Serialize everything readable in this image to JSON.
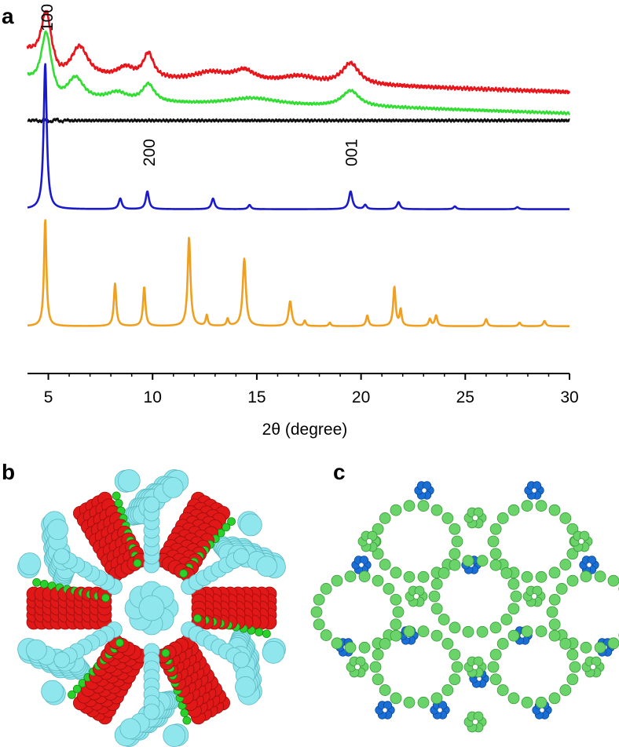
{
  "panels": {
    "a": "a",
    "b": "b",
    "c": "c"
  },
  "chart_data": {
    "type": "line",
    "title": "",
    "xlabel": "2θ (degree)",
    "ylabel": "",
    "xlim": [
      4,
      30
    ],
    "x_ticks": [
      5,
      10,
      15,
      20,
      25,
      30
    ],
    "grid": false,
    "legend": "none",
    "y_scale": "arbitrary intensity, traces stacked with vertical offsets",
    "peak_labels": [
      {
        "text": "100",
        "x": 4.9
      },
      {
        "text": "200",
        "x": 9.8
      },
      {
        "text": "001",
        "x": 19.5
      }
    ],
    "series": [
      {
        "color": "#e8151b",
        "baseline": 0.78,
        "peaks": [
          [
            4.9,
            1.0,
            0.3
          ],
          [
            6.5,
            0.09,
            0.5
          ],
          [
            8.7,
            0.03,
            0.5
          ],
          [
            9.8,
            0.07,
            0.3
          ],
          [
            12.8,
            0.025,
            1.0
          ],
          [
            14.4,
            0.03,
            0.6
          ],
          [
            17.0,
            0.02,
            1.0
          ],
          [
            19.5,
            0.06,
            0.5
          ]
        ],
        "points": [
          [
            4.0,
            0.87
          ],
          [
            4.9,
            1.0
          ],
          [
            5.5,
            0.87
          ],
          [
            6.5,
            0.86
          ],
          [
            7.5,
            0.83
          ],
          [
            9.0,
            0.82
          ],
          [
            9.8,
            0.845
          ],
          [
            11.0,
            0.82
          ],
          [
            14.4,
            0.815
          ],
          [
            17.0,
            0.81
          ],
          [
            19.5,
            0.82
          ],
          [
            22.0,
            0.795
          ],
          [
            26.0,
            0.78
          ],
          [
            30.0,
            0.77
          ]
        ]
      },
      {
        "color": "#33dd33",
        "baseline": 0.72,
        "peaks": [
          [
            4.9,
            0.94,
            0.3
          ],
          [
            6.3,
            0.07,
            0.5
          ],
          [
            8.3,
            0.025,
            0.6
          ],
          [
            9.8,
            0.05,
            0.35
          ],
          [
            14.8,
            0.02,
            1.5
          ],
          [
            19.5,
            0.045,
            0.5
          ]
        ],
        "points": [
          [
            4.0,
            0.81
          ],
          [
            4.9,
            0.94
          ],
          [
            5.5,
            0.83
          ],
          [
            6.3,
            0.8
          ],
          [
            7.5,
            0.77
          ],
          [
            9.0,
            0.765
          ],
          [
            9.8,
            0.78
          ],
          [
            11.0,
            0.755
          ],
          [
            15.0,
            0.755
          ],
          [
            19.5,
            0.765
          ],
          [
            22.0,
            0.745
          ],
          [
            26.0,
            0.735
          ],
          [
            30.0,
            0.735
          ]
        ]
      },
      {
        "color": "#111111",
        "baseline": 0.7,
        "peaks": [],
        "points": [
          [
            4.0,
            0.7
          ],
          [
            30.0,
            0.7
          ]
        ]
      },
      {
        "color": "#1a1acc",
        "baseline": 0.45,
        "peaks": [
          [
            4.85,
            0.41,
            0.09
          ],
          [
            8.45,
            0.03,
            0.09
          ],
          [
            9.75,
            0.05,
            0.09
          ],
          [
            12.9,
            0.03,
            0.09
          ],
          [
            14.65,
            0.012,
            0.08
          ],
          [
            19.5,
            0.05,
            0.1
          ],
          [
            20.2,
            0.012,
            0.08
          ],
          [
            21.8,
            0.02,
            0.09
          ],
          [
            24.5,
            0.008,
            0.08
          ],
          [
            27.5,
            0.006,
            0.08
          ]
        ],
        "points": [
          [
            4.0,
            0.45
          ],
          [
            4.85,
            0.86
          ],
          [
            8.45,
            0.48
          ],
          [
            9.75,
            0.5
          ],
          [
            12.9,
            0.48
          ],
          [
            19.5,
            0.5
          ],
          [
            21.8,
            0.47
          ],
          [
            30.0,
            0.45
          ]
        ]
      },
      {
        "color": "#f0a020",
        "baseline": 0.12,
        "peaks": [
          [
            4.85,
            0.3,
            0.07
          ],
          [
            8.2,
            0.12,
            0.07
          ],
          [
            9.6,
            0.11,
            0.07
          ],
          [
            11.75,
            0.25,
            0.08
          ],
          [
            12.6,
            0.03,
            0.06
          ],
          [
            13.6,
            0.02,
            0.06
          ],
          [
            14.4,
            0.19,
            0.09
          ],
          [
            16.6,
            0.07,
            0.09
          ],
          [
            17.3,
            0.015,
            0.06
          ],
          [
            18.5,
            0.01,
            0.06
          ],
          [
            20.3,
            0.03,
            0.07
          ],
          [
            21.6,
            0.11,
            0.07
          ],
          [
            21.9,
            0.045,
            0.06
          ],
          [
            23.3,
            0.02,
            0.07
          ],
          [
            23.6,
            0.03,
            0.07
          ],
          [
            26.0,
            0.02,
            0.07
          ],
          [
            27.6,
            0.01,
            0.07
          ],
          [
            28.8,
            0.015,
            0.07
          ]
        ],
        "points": [
          [
            4.0,
            0.12
          ],
          [
            4.85,
            0.42
          ],
          [
            8.2,
            0.24
          ],
          [
            9.6,
            0.23
          ],
          [
            11.75,
            0.37
          ],
          [
            14.4,
            0.31
          ],
          [
            16.6,
            0.19
          ],
          [
            21.6,
            0.23
          ],
          [
            30.0,
            0.12
          ]
        ]
      }
    ]
  },
  "images": {
    "b": {
      "description_colors": [
        "#8fe6ec",
        "#e81b1b",
        "#22d122"
      ]
    },
    "c": {
      "description_colors": [
        "#6ad46a",
        "#1a6fd6"
      ]
    }
  }
}
